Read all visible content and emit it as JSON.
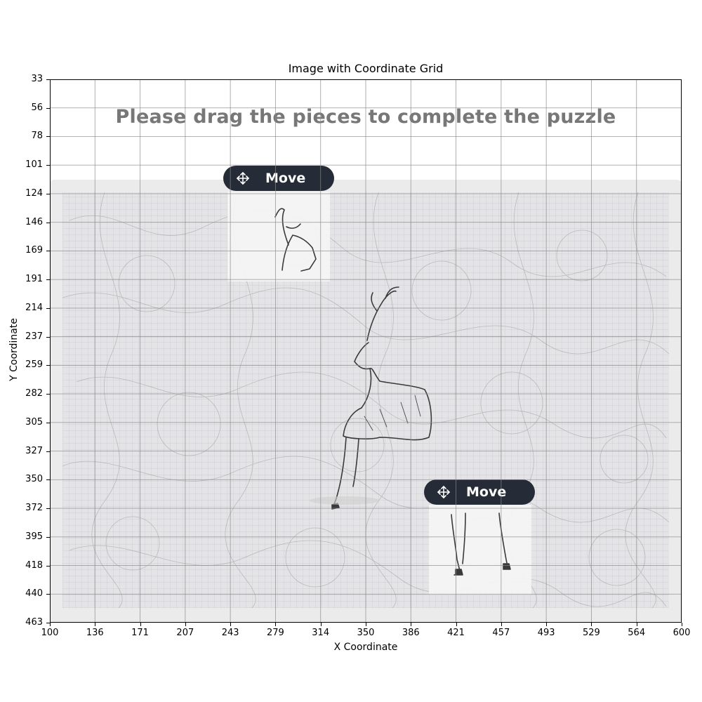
{
  "figure": {
    "title": "Image with Coordinate Grid",
    "x_axis_label": "X Coordinate",
    "y_axis_label": "Y Coordinate",
    "x_ticks": [
      "100",
      "136",
      "171",
      "207",
      "243",
      "279",
      "314",
      "350",
      "386",
      "421",
      "457",
      "493",
      "529",
      "564",
      "600"
    ],
    "y_ticks": [
      "33",
      "56",
      "78",
      "101",
      "124",
      "146",
      "169",
      "191",
      "214",
      "237",
      "259",
      "282",
      "305",
      "327",
      "350",
      "372",
      "395",
      "418",
      "440",
      "463"
    ],
    "grid": true
  },
  "screenshot": {
    "instruction": "Please drag the pieces to complete the puzzle",
    "move_buttons": [
      {
        "label": "Move",
        "icon": "move-arrows-icon"
      },
      {
        "label": "Move",
        "icon": "move-arrows-icon"
      }
    ],
    "colors": {
      "button_bg": "#262b38",
      "button_text": "#ffffff",
      "instruction_text": "#777777",
      "board_bg": "#ebebeb"
    }
  }
}
